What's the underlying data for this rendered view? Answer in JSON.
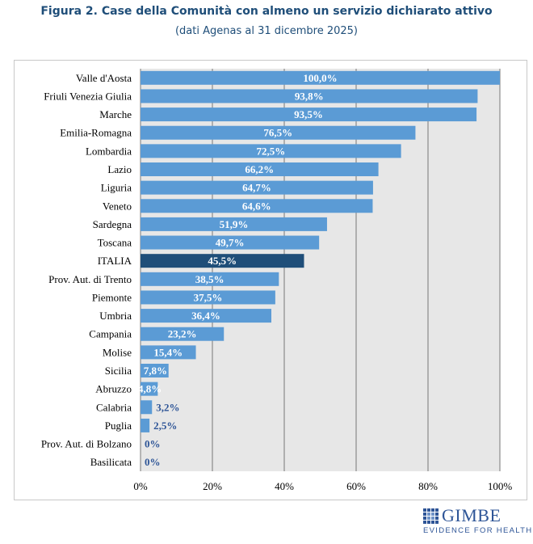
{
  "chart_data": {
    "type": "bar",
    "orientation": "horizontal",
    "title": "Figura 2. Case della Comunità con almeno un servizio dichiarato attivo",
    "subtitle": "(dati Agenas al 31 dicembre 2025)",
    "categories": [
      "Valle d'Aosta",
      "Friuli Venezia Giulia",
      "Marche",
      "Emilia-Romagna",
      "Lombardia",
      "Lazio",
      "Liguria",
      "Veneto",
      "Sardegna",
      "Toscana",
      "ITALIA",
      "Prov. Aut. di Trento",
      "Piemonte",
      "Umbria",
      "Campania",
      "Molise",
      "Sicilia",
      "Abruzzo",
      "Calabria",
      "Puglia",
      "Prov. Aut. di Bolzano",
      "Basilicata"
    ],
    "values": [
      100.0,
      93.8,
      93.5,
      76.5,
      72.5,
      66.2,
      64.7,
      64.6,
      51.9,
      49.7,
      45.5,
      38.5,
      37.5,
      36.4,
      23.2,
      15.4,
      7.8,
      4.8,
      3.2,
      2.5,
      0,
      0
    ],
    "data_labels": [
      "100,0%",
      "93,8%",
      "93,5%",
      "76,5%",
      "72,5%",
      "66,2%",
      "64,7%",
      "64,6%",
      "51,9%",
      "49,7%",
      "45,5%",
      "38,5%",
      "37,5%",
      "36,4%",
      "23,2%",
      "15,4%",
      "7,8%",
      "4,8%",
      "3,2%",
      "2,5%",
      "0%",
      "0%"
    ],
    "highlight": "ITALIA",
    "xlim": [
      0,
      100
    ],
    "xticks": [
      0,
      20,
      40,
      60,
      80,
      100
    ],
    "xtick_labels": [
      "0%",
      "20%",
      "40%",
      "60%",
      "80%",
      "100%"
    ],
    "xlabel": "",
    "ylabel": "",
    "grid": true,
    "colors": {
      "bar": "#5b9bd5",
      "highlight": "#1f4e79",
      "plot_bg": "#e7e7e7",
      "label_inside": "#ffffff",
      "label_outside": "#2e5597",
      "grid": "#777777"
    }
  },
  "logo": {
    "name": "GIMBE",
    "tagline": "EVIDENCE FOR HEALTH",
    "color": "#2e5597"
  }
}
